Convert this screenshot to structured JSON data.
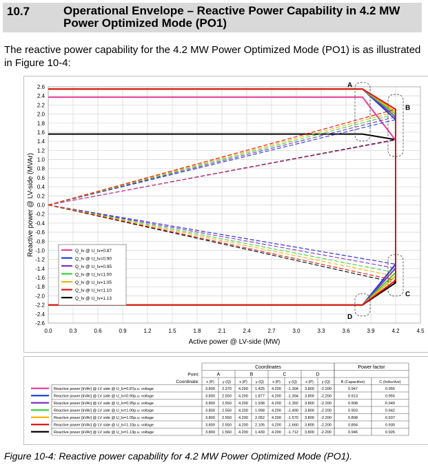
{
  "section": {
    "number": "10.7",
    "title": "Operational Envelope – Reactive Power Capability in 4.2 MW Power Optimized Mode (PO1)"
  },
  "intro_text": "The reactive power capability for the 4.2 MW Power Optimized Mode (PO1) is as illustrated in Figure 10-4:",
  "caption": "Figure 10-4: Reactive power capability for 4.2 MW Power Optimized Mode (PO1).",
  "point_labels": [
    "A",
    "B",
    "C",
    "D"
  ],
  "chart_data": {
    "type": "line",
    "xlabel": "Active power  @ LV-side (MW)",
    "ylabel": "Reactive power @ LV-side (MVAr)",
    "xlim": [
      0.0,
      4.5
    ],
    "ylim": [
      -2.6,
      2.6
    ],
    "xticks": [
      "0.0",
      "0.3",
      "0.6",
      "0.9",
      "1.2",
      "1.5",
      "1.8",
      "2.1",
      "2.4",
      "2.7",
      "3.0",
      "3.3",
      "3.6",
      "3.9",
      "4.2",
      "4.5"
    ],
    "yticks": [
      "2.6",
      "2.4",
      "2.2",
      "2.0",
      "1.8",
      "1.6",
      "1.4",
      "1.2",
      "1.0",
      "0.8",
      "0.6",
      "0.4",
      "0.2",
      "0.0",
      "-0.2",
      "-0.4",
      "-0.6",
      "-0.8",
      "-1.0",
      "-1.2",
      "-1.4",
      "-1.6",
      "-1.8",
      "-2.0",
      "-2.2",
      "-2.4",
      "-2.6"
    ],
    "grid": true,
    "legend_placement": "left",
    "series": [
      {
        "name": "Q_lv @ U_lv=0.87",
        "color": "#e83e9c",
        "A": [
          3.8,
          2.37
        ],
        "B": [
          4.2,
          1.425
        ],
        "C": [
          4.2,
          -1.304
        ],
        "D": [
          3.8,
          -2.2
        ]
      },
      {
        "name": "Q_lv @ U_lv=0.90",
        "color": "#1f3fd6",
        "A": [
          3.8,
          2.55
        ],
        "B": [
          4.2,
          1.877
        ],
        "C": [
          4.2,
          -1.304
        ],
        "D": [
          3.8,
          -2.2
        ]
      },
      {
        "name": "Q_lv @ U_lv=0.95",
        "color": "#7d2fc6",
        "A": [
          3.8,
          2.55
        ],
        "B": [
          4.2,
          1.938
        ],
        "C": [
          4.2,
          -1.392
        ],
        "D": [
          3.8,
          -2.2
        ]
      },
      {
        "name": "Q_lv @ U_lv=1.00",
        "color": "#39d339",
        "A": [
          3.8,
          2.55
        ],
        "B": [
          4.2,
          1.998
        ],
        "C": [
          4.2,
          -1.49
        ],
        "D": [
          3.8,
          -2.2
        ]
      },
      {
        "name": "Q_lv @ U_lv=1.05",
        "color": "#f5b400",
        "A": [
          3.8,
          2.55
        ],
        "B": [
          4.2,
          2.052
        ],
        "C": [
          4.2,
          -1.57
        ],
        "D": [
          3.8,
          -2.2
        ]
      },
      {
        "name": "Q_lv @ U_lv=1.10",
        "color": "#e01010",
        "A": [
          3.8,
          2.55
        ],
        "B": [
          4.2,
          2.105
        ],
        "C": [
          4.2,
          -1.66
        ],
        "D": [
          3.8,
          -2.2
        ]
      },
      {
        "name": "Q_lv @ U_lv=1.13",
        "color": "#000000",
        "A": [
          3.8,
          1.56
        ],
        "B": [
          4.2,
          1.439
        ],
        "C": [
          4.2,
          -1.712
        ],
        "D": [
          3.8,
          -2.2
        ]
      }
    ]
  },
  "table": {
    "group_header": "Coordinates",
    "pf_header": "Power factor",
    "point_label": "Point:",
    "coord_label": "Coordinate:",
    "points": [
      "A",
      "B",
      "C",
      "D"
    ],
    "coords": [
      "x (P)",
      "y (Q)",
      "x (P)",
      "y (Q)",
      "x (P)",
      "y (Q)",
      "x (P)",
      "y (Q)"
    ],
    "pf_cols": [
      "B (Capacitive)",
      "C (Inductive)"
    ],
    "rows": [
      {
        "label": "Reactive power [kVAr] @ LV side @ U_lv=0.87p.u. voltage",
        "color": "#e83e9c",
        "vals": [
          "3.800",
          "2.370",
          "4.200",
          "1.425",
          "4.200",
          "-1.304",
          "3.800",
          "-2.200"
        ],
        "pf": [
          "0.947",
          "0.955"
        ]
      },
      {
        "label": "Reactive power [kVAr] @ LV side @ U_lv=0.90p.u. voltage",
        "color": "#1f3fd6",
        "vals": [
          "3.800",
          "2.550",
          "4.200",
          "1.877",
          "4.200",
          "-1.304",
          "3.800",
          "-2.200"
        ],
        "pf": [
          "0.913",
          "0.955"
        ]
      },
      {
        "label": "Reactive power [kVAr] @ LV side @ U_lv=0.95p.u. voltage",
        "color": "#7d2fc6",
        "vals": [
          "3.800",
          "2.550",
          "4.200",
          "1.938",
          "4.200",
          "-1.392",
          "3.800",
          "-2.200"
        ],
        "pf": [
          "0.908",
          "0.949"
        ]
      },
      {
        "label": "Reactive power [kVAr] @ LV side @ U_lv=1.00p.u. voltage",
        "color": "#39d339",
        "vals": [
          "3.800",
          "2.550",
          "4.200",
          "1.998",
          "4.200",
          "-1.490",
          "3.800",
          "-2.200"
        ],
        "pf": [
          "0.903",
          "0.942"
        ]
      },
      {
        "label": "Reactive power [kVAr] @ LV side @ U_lv=1.05p.u. voltage",
        "color": "#f5b400",
        "vals": [
          "3.800",
          "2.550",
          "4.200",
          "2.052",
          "4.200",
          "-1.570",
          "3.800",
          "-2.200"
        ],
        "pf": [
          "0.898",
          "0.937"
        ]
      },
      {
        "label": "Reactive power [kVAr] @ LV side @ U_lv=1.10p.u. voltage",
        "color": "#e01010",
        "vals": [
          "3.800",
          "2.550",
          "4.200",
          "2.105",
          "4.200",
          "-1.660",
          "3.800",
          "-2.200"
        ],
        "pf": [
          "0.894",
          "0.930"
        ]
      },
      {
        "label": "Reactive power [kVAr] @ LV side @ U_lv=1.13p.u. voltage",
        "color": "#000000",
        "vals": [
          "3.800",
          "1.560",
          "4.200",
          "1.439",
          "4.200",
          "-1.712",
          "3.800",
          "-2.200"
        ],
        "pf": [
          "0.946",
          "0.926"
        ]
      }
    ]
  }
}
